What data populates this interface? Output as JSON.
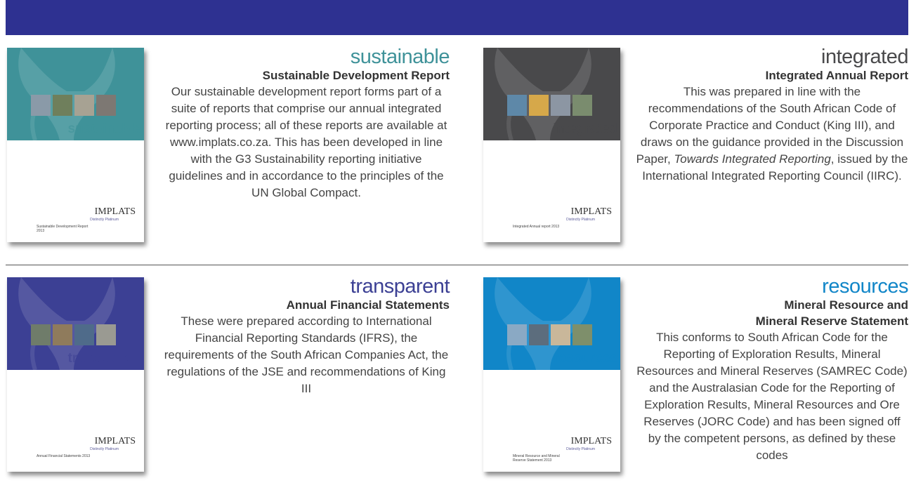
{
  "logo": {
    "name": "IMPLATS",
    "tagline": "Distinctly Platinum"
  },
  "reports": [
    {
      "keyword": "sustainable",
      "title": "Sustainable Development Report",
      "cover_caption": "Sustainable Development Report 2013",
      "description": "Our sustainable development report forms part of a suite of reports that comprise our annual integrated reporting process; all of these reports are available at www.implats.co.za. This has been developed in line with the G3 Sustainability reporting initiative guidelines and in accordance to the principles of the UN Global Compact."
    },
    {
      "keyword": "integrated",
      "title": "Integrated Annual Report",
      "cover_caption": "Integrated Annual report 2013",
      "description": "This was prepared in line with the recommendations of the South African Code of Corporate Practice and Conduct (King III), and draws on the guidance provided in the Discussion Paper, ",
      "description_emphasis": "Towards Integrated Reporting",
      "description_end": ", issued by the International Integrated Reporting Council (IIRC)."
    },
    {
      "keyword": "transparent",
      "title": "Annual Financial Statements",
      "cover_caption": "Annual Financial Statements 2013",
      "description": "These were prepared according to International Financial Reporting Standards (IFRS), the requirements of the South African Companies Act, the regulations of the JSE and recommendations of King III"
    },
    {
      "keyword": "resources",
      "title": "Mineral Resource and Mineral Reserve Statement",
      "cover_caption": "Mineral Resource and Mineral Reserve Statement 2013",
      "description": "This conforms to South African Code for the Reporting of Exploration Results, Mineral Resources and Mineral Reserves (SAMREC Code) and the Australasian Code for the Reporting of Exploration Results, Mineral Resources and Ore Reserves (JORC Code) and has been signed off by the competent persons, as defined by these codes"
    }
  ]
}
